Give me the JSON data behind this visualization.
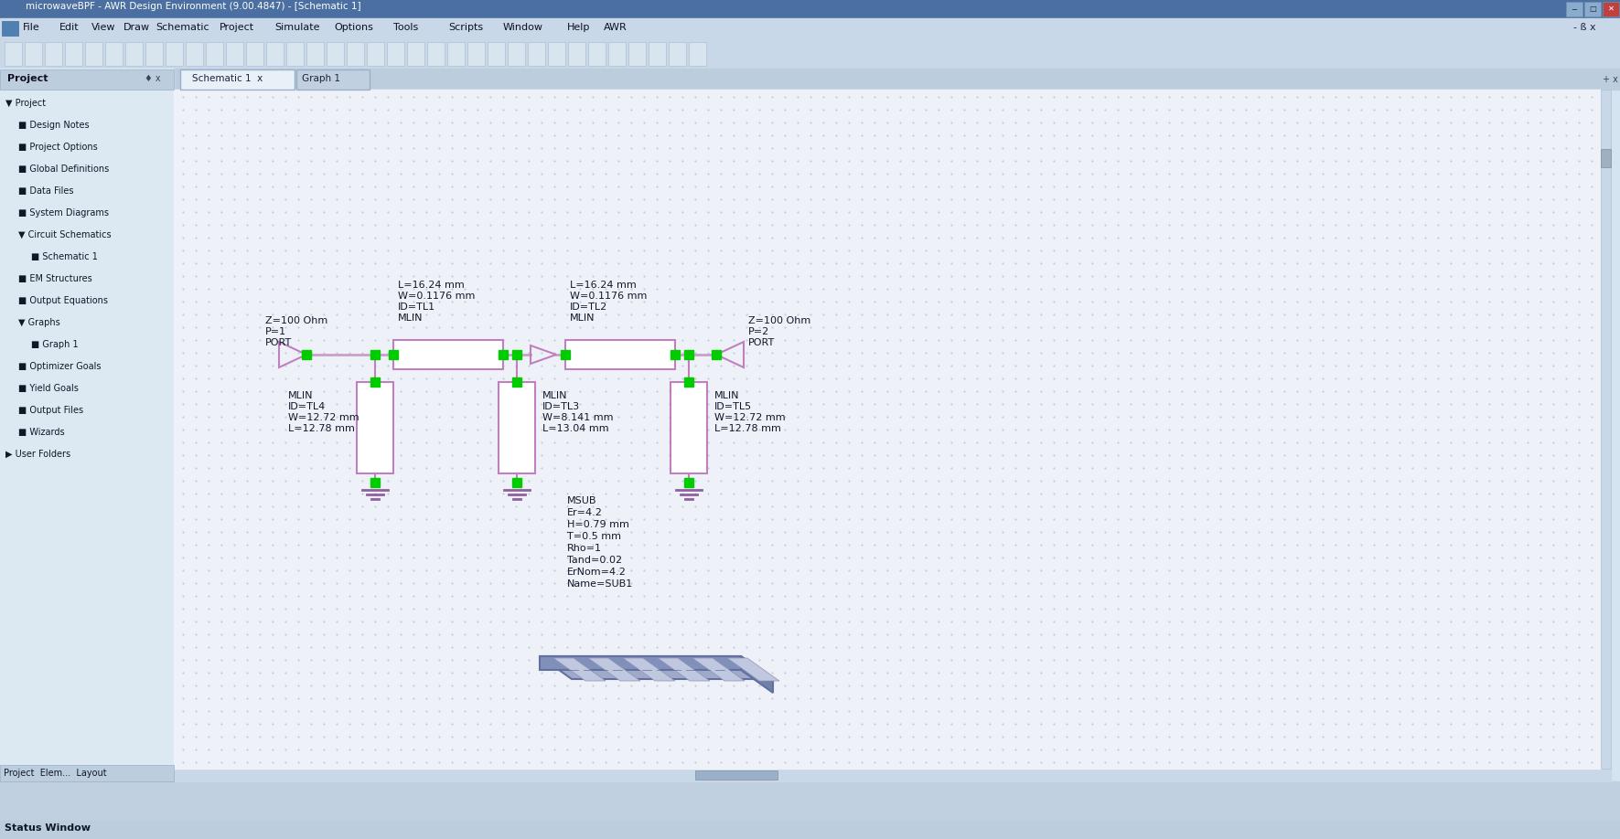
{
  "title_bar": "microwaveBPF - AWR Design Environment (9.00.4847) - [Schematic 1]",
  "menu_items": [
    "File",
    "Edit",
    "View",
    "Draw",
    "Schematic",
    "Project",
    "Simulate",
    "Options",
    "Tools",
    "Scripts",
    "Window",
    "Help",
    "AWR"
  ],
  "tabs": [
    "Schematic 1",
    "Graph 1"
  ],
  "bg_color": "#d4e4f0",
  "schematic_bg": "#eef2f8",
  "wire_color": "#c8a0c8",
  "node_color": "#00cc00",
  "comp_color": "#c080c0",
  "port1_label": [
    "PORT",
    "P=1",
    "Z=100 Ohm"
  ],
  "port2_label": [
    "PORT",
    "P=2",
    "Z=100 Ohm"
  ],
  "tl1_label": [
    "MLIN",
    "ID=TL1",
    "W=0.1176 mm",
    "L=16.24 mm"
  ],
  "tl2_label": [
    "MLIN",
    "ID=TL2",
    "W=0.1176 mm",
    "L=16.24 mm"
  ],
  "tl3_label": [
    "MLIN",
    "ID=TL3",
    "W=8.141 mm",
    "L=13.04 mm"
  ],
  "tl4_label": [
    "MLIN",
    "ID=TL4",
    "W=12.72 mm",
    "L=12.78 mm"
  ],
  "tl5_label": [
    "MLIN",
    "ID=TL5",
    "W=12.72 mm",
    "L=12.78 mm"
  ],
  "msub_label": [
    "MSUB",
    "Er=4.2",
    "H=0.79 mm",
    "T=0.5 mm",
    "Rho=1",
    "Tand=0.02",
    "ErNom=4.2",
    "Name=SUB1"
  ],
  "tree_items": [
    [
      0,
      "Project"
    ],
    [
      1,
      "Design Notes"
    ],
    [
      1,
      "Project Options"
    ],
    [
      1,
      "Global Definitions"
    ],
    [
      1,
      "Data Files"
    ],
    [
      1,
      "System Diagrams"
    ],
    [
      1,
      "Circuit Schematics"
    ],
    [
      2,
      "Schematic 1"
    ],
    [
      1,
      "EM Structures"
    ],
    [
      1,
      "Output Equations"
    ],
    [
      1,
      "Graphs"
    ],
    [
      2,
      "Graph 1"
    ],
    [
      1,
      "Optimizer Goals"
    ],
    [
      1,
      "Yield Goals"
    ],
    [
      1,
      "Output Files"
    ],
    [
      1,
      "Wizards"
    ],
    [
      0,
      "User Folders"
    ]
  ]
}
